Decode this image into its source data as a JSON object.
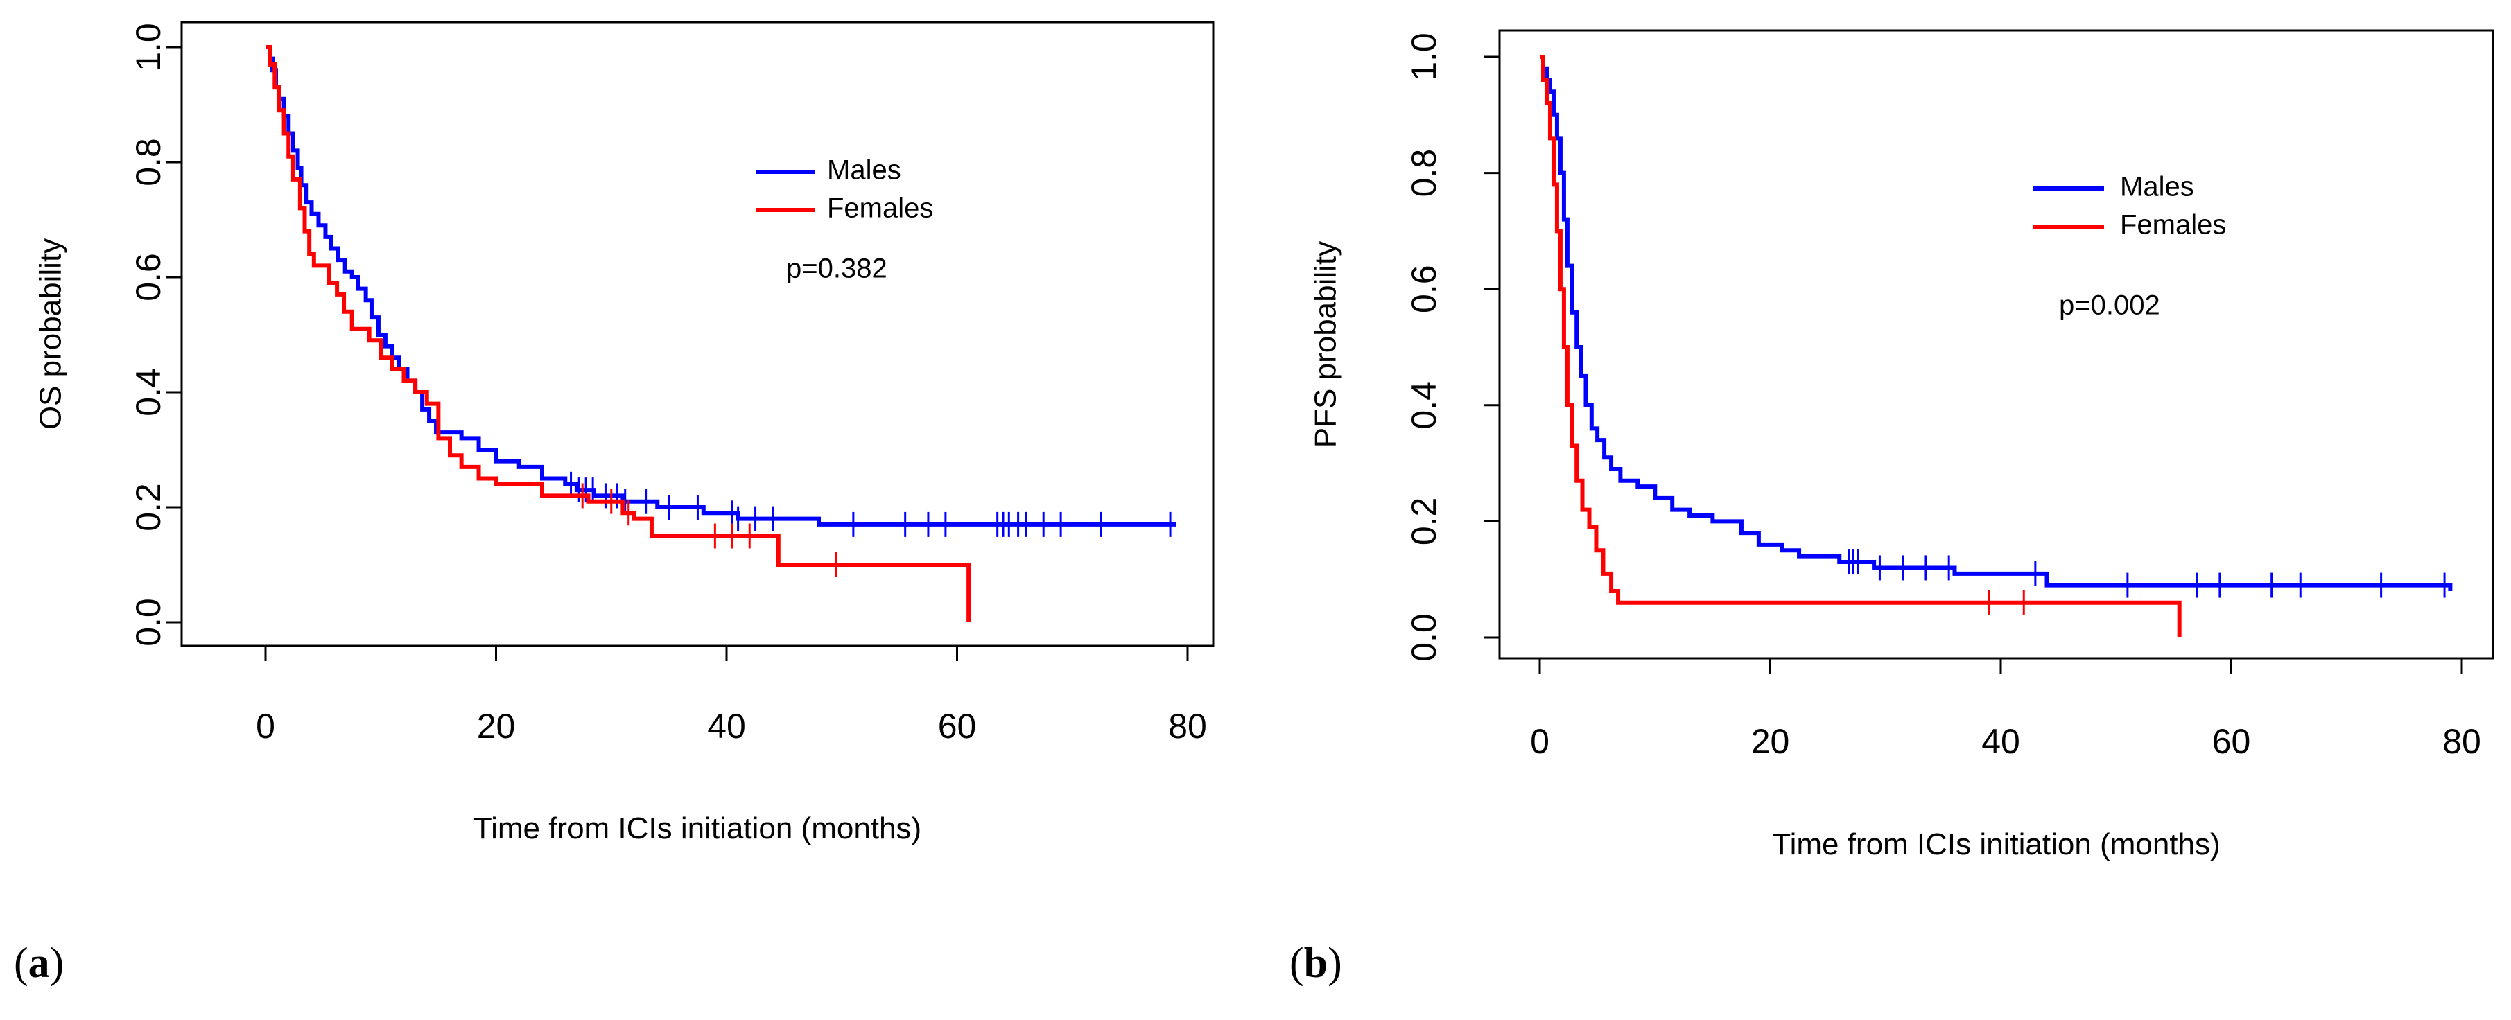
{
  "panels_tags": [
    "a",
    "b"
  ],
  "chart_data": [
    {
      "type": "line",
      "panel_label": "a",
      "title": "",
      "xlabel": "Time from ICIs initiation (months)",
      "ylabel": "OS probability",
      "xlim": [
        0,
        80
      ],
      "ylim": [
        0,
        1
      ],
      "xticks": [
        0,
        20,
        40,
        60,
        80
      ],
      "yticks": [
        0.0,
        0.2,
        0.4,
        0.6,
        0.8,
        1.0
      ],
      "xtick_labels": [
        "0",
        "20",
        "40",
        "60",
        "80"
      ],
      "ytick_labels": [
        "0.0",
        "0.2",
        "0.4",
        "0.6",
        "0.8",
        "1.0"
      ],
      "grid": false,
      "legend_position": "upper-right-inside",
      "annotation": "p=0.382",
      "series": [
        {
          "name": "Males",
          "color": "#0000ff",
          "step_points": [
            [
              0,
              1.0
            ],
            [
              0.4,
              0.98
            ],
            [
              0.6,
              0.96
            ],
            [
              0.9,
              0.93
            ],
            [
              1.2,
              0.91
            ],
            [
              1.6,
              0.88
            ],
            [
              2.0,
              0.85
            ],
            [
              2.4,
              0.82
            ],
            [
              2.8,
              0.79
            ],
            [
              3.1,
              0.76
            ],
            [
              3.5,
              0.73
            ],
            [
              4.0,
              0.71
            ],
            [
              4.6,
              0.69
            ],
            [
              5.2,
              0.67
            ],
            [
              5.7,
              0.65
            ],
            [
              6.3,
              0.63
            ],
            [
              6.9,
              0.61
            ],
            [
              7.5,
              0.6
            ],
            [
              8.0,
              0.58
            ],
            [
              8.7,
              0.56
            ],
            [
              9.2,
              0.53
            ],
            [
              9.8,
              0.5
            ],
            [
              10.4,
              0.48
            ],
            [
              11.0,
              0.46
            ],
            [
              11.6,
              0.44
            ],
            [
              12.3,
              0.42
            ],
            [
              13.0,
              0.4
            ],
            [
              13.6,
              0.37
            ],
            [
              14.2,
              0.35
            ],
            [
              14.8,
              0.33
            ],
            [
              17.0,
              0.32
            ],
            [
              18.5,
              0.3
            ],
            [
              20.0,
              0.28
            ],
            [
              22.0,
              0.27
            ],
            [
              24.0,
              0.25
            ],
            [
              26.0,
              0.24
            ],
            [
              27.0,
              0.23
            ],
            [
              28.5,
              0.22
            ],
            [
              31.0,
              0.21
            ],
            [
              34.0,
              0.2
            ],
            [
              38.0,
              0.19
            ],
            [
              41.0,
              0.18
            ],
            [
              48.0,
              0.17
            ],
            [
              79.0,
              0.17
            ]
          ],
          "censor_times": [
            26.5,
            27.2,
            27.8,
            28.4,
            29.5,
            30.5,
            31.2,
            33.0,
            35.0,
            37.5,
            40.5,
            41.0,
            42.5,
            44.0,
            51.0,
            55.5,
            57.5,
            59.0,
            63.5,
            64.0,
            64.5,
            65.3,
            66.0,
            67.5,
            69.0,
            72.5,
            78.5
          ]
        },
        {
          "name": "Females",
          "color": "#ff0000",
          "step_points": [
            [
              0,
              1.0
            ],
            [
              0.4,
              0.97
            ],
            [
              0.8,
              0.93
            ],
            [
              1.2,
              0.89
            ],
            [
              1.6,
              0.85
            ],
            [
              2.0,
              0.81
            ],
            [
              2.4,
              0.77
            ],
            [
              3.0,
              0.72
            ],
            [
              3.4,
              0.68
            ],
            [
              3.8,
              0.64
            ],
            [
              4.2,
              0.62
            ],
            [
              5.5,
              0.59
            ],
            [
              6.2,
              0.57
            ],
            [
              6.8,
              0.54
            ],
            [
              7.5,
              0.51
            ],
            [
              9.0,
              0.49
            ],
            [
              10.0,
              0.46
            ],
            [
              11.0,
              0.44
            ],
            [
              12.0,
              0.42
            ],
            [
              13.0,
              0.4
            ],
            [
              14.0,
              0.38
            ],
            [
              15.0,
              0.32
            ],
            [
              16.0,
              0.29
            ],
            [
              17.0,
              0.27
            ],
            [
              18.5,
              0.25
            ],
            [
              20.0,
              0.24
            ],
            [
              24.0,
              0.22
            ],
            [
              28.0,
              0.21
            ],
            [
              31.0,
              0.19
            ],
            [
              32.0,
              0.18
            ],
            [
              33.5,
              0.15
            ],
            [
              44.5,
              0.1
            ],
            [
              61.0,
              0.0
            ]
          ],
          "censor_times": [
            27.5,
            30.0,
            31.5,
            39.0,
            40.5,
            42.0,
            49.5
          ]
        }
      ]
    },
    {
      "type": "line",
      "panel_label": "b",
      "title": "",
      "xlabel": "Time from ICIs initiation (months)",
      "ylabel": "PFS probability",
      "xlim": [
        0,
        80
      ],
      "ylim": [
        0,
        1
      ],
      "xticks": [
        0,
        20,
        40,
        60,
        80
      ],
      "yticks": [
        0.0,
        0.2,
        0.4,
        0.6,
        0.8,
        1.0
      ],
      "xtick_labels": [
        "0",
        "20",
        "40",
        "60",
        "80"
      ],
      "ytick_labels": [
        "0.0",
        "0.2",
        "0.4",
        "0.6",
        "0.8",
        "1.0"
      ],
      "grid": false,
      "legend_position": "upper-right-inside",
      "annotation": "p=0.002",
      "series": [
        {
          "name": "Males",
          "color": "#0000ff",
          "step_points": [
            [
              0,
              1.0
            ],
            [
              0.3,
              0.98
            ],
            [
              0.6,
              0.96
            ],
            [
              0.9,
              0.94
            ],
            [
              1.2,
              0.9
            ],
            [
              1.5,
              0.86
            ],
            [
              1.8,
              0.8
            ],
            [
              2.1,
              0.72
            ],
            [
              2.4,
              0.64
            ],
            [
              2.8,
              0.56
            ],
            [
              3.2,
              0.5
            ],
            [
              3.6,
              0.45
            ],
            [
              4.0,
              0.4
            ],
            [
              4.5,
              0.36
            ],
            [
              5.0,
              0.34
            ],
            [
              5.6,
              0.31
            ],
            [
              6.2,
              0.29
            ],
            [
              7.0,
              0.27
            ],
            [
              8.5,
              0.26
            ],
            [
              10.0,
              0.24
            ],
            [
              11.5,
              0.22
            ],
            [
              13.0,
              0.21
            ],
            [
              15.0,
              0.2
            ],
            [
              17.5,
              0.18
            ],
            [
              19.0,
              0.16
            ],
            [
              21.0,
              0.15
            ],
            [
              22.5,
              0.14
            ],
            [
              26.0,
              0.13
            ],
            [
              29.0,
              0.12
            ],
            [
              36.0,
              0.11
            ],
            [
              44.0,
              0.09
            ],
            [
              79.0,
              0.08
            ]
          ],
          "censor_times": [
            26.8,
            27.2,
            27.6,
            29.5,
            31.5,
            33.5,
            35.5,
            43.0,
            51.0,
            57.0,
            59.0,
            63.5,
            66.0,
            73.0,
            78.5
          ]
        },
        {
          "name": "Females",
          "color": "#ff0000",
          "step_points": [
            [
              0,
              1.0
            ],
            [
              0.3,
              0.96
            ],
            [
              0.6,
              0.92
            ],
            [
              0.9,
              0.86
            ],
            [
              1.2,
              0.78
            ],
            [
              1.5,
              0.7
            ],
            [
              1.8,
              0.6
            ],
            [
              2.1,
              0.5
            ],
            [
              2.4,
              0.4
            ],
            [
              2.8,
              0.33
            ],
            [
              3.2,
              0.27
            ],
            [
              3.7,
              0.22
            ],
            [
              4.3,
              0.19
            ],
            [
              4.9,
              0.15
            ],
            [
              5.5,
              0.11
            ],
            [
              6.2,
              0.08
            ],
            [
              6.8,
              0.06
            ],
            [
              55.5,
              0.0
            ]
          ],
          "censor_times": [
            39.0,
            42.0
          ]
        }
      ]
    }
  ]
}
